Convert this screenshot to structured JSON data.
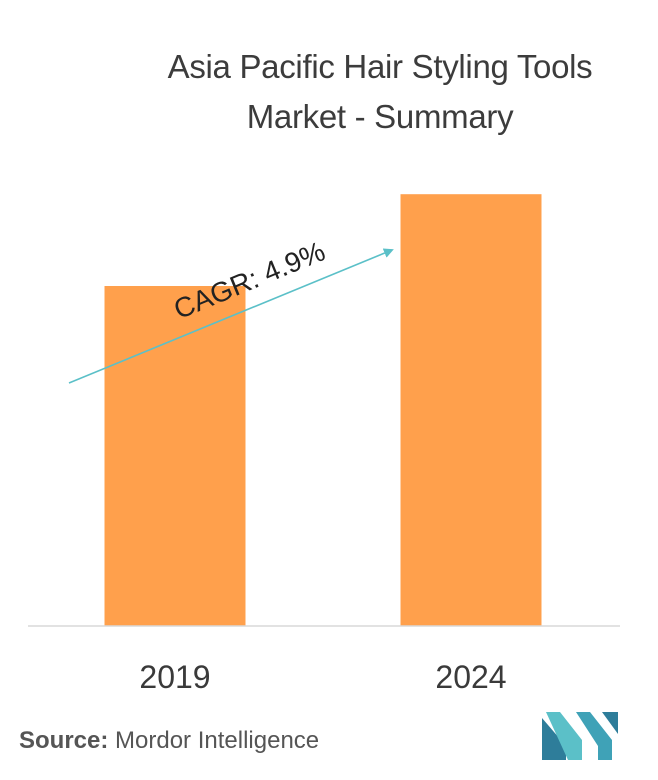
{
  "title": {
    "line1": "Asia Pacific Hair Styling Tools",
    "line2": "Market - Summary"
  },
  "chart_data": {
    "type": "bar",
    "categories": [
      "2019",
      "2024"
    ],
    "values": [
      100,
      127
    ],
    "ylim": [
      0,
      140
    ],
    "grid": false,
    "legend": "none",
    "annotation": "CAGR: 4.9%",
    "bar_color": "#FFA04C",
    "arrow_color": "#5BC0C8"
  },
  "source": {
    "label": "Source:",
    "text": "Mordor Intelligence"
  },
  "logo": {
    "name": "mordor-intelligence-logo",
    "colors": [
      "#2E7D9A",
      "#5BC0C8"
    ]
  }
}
